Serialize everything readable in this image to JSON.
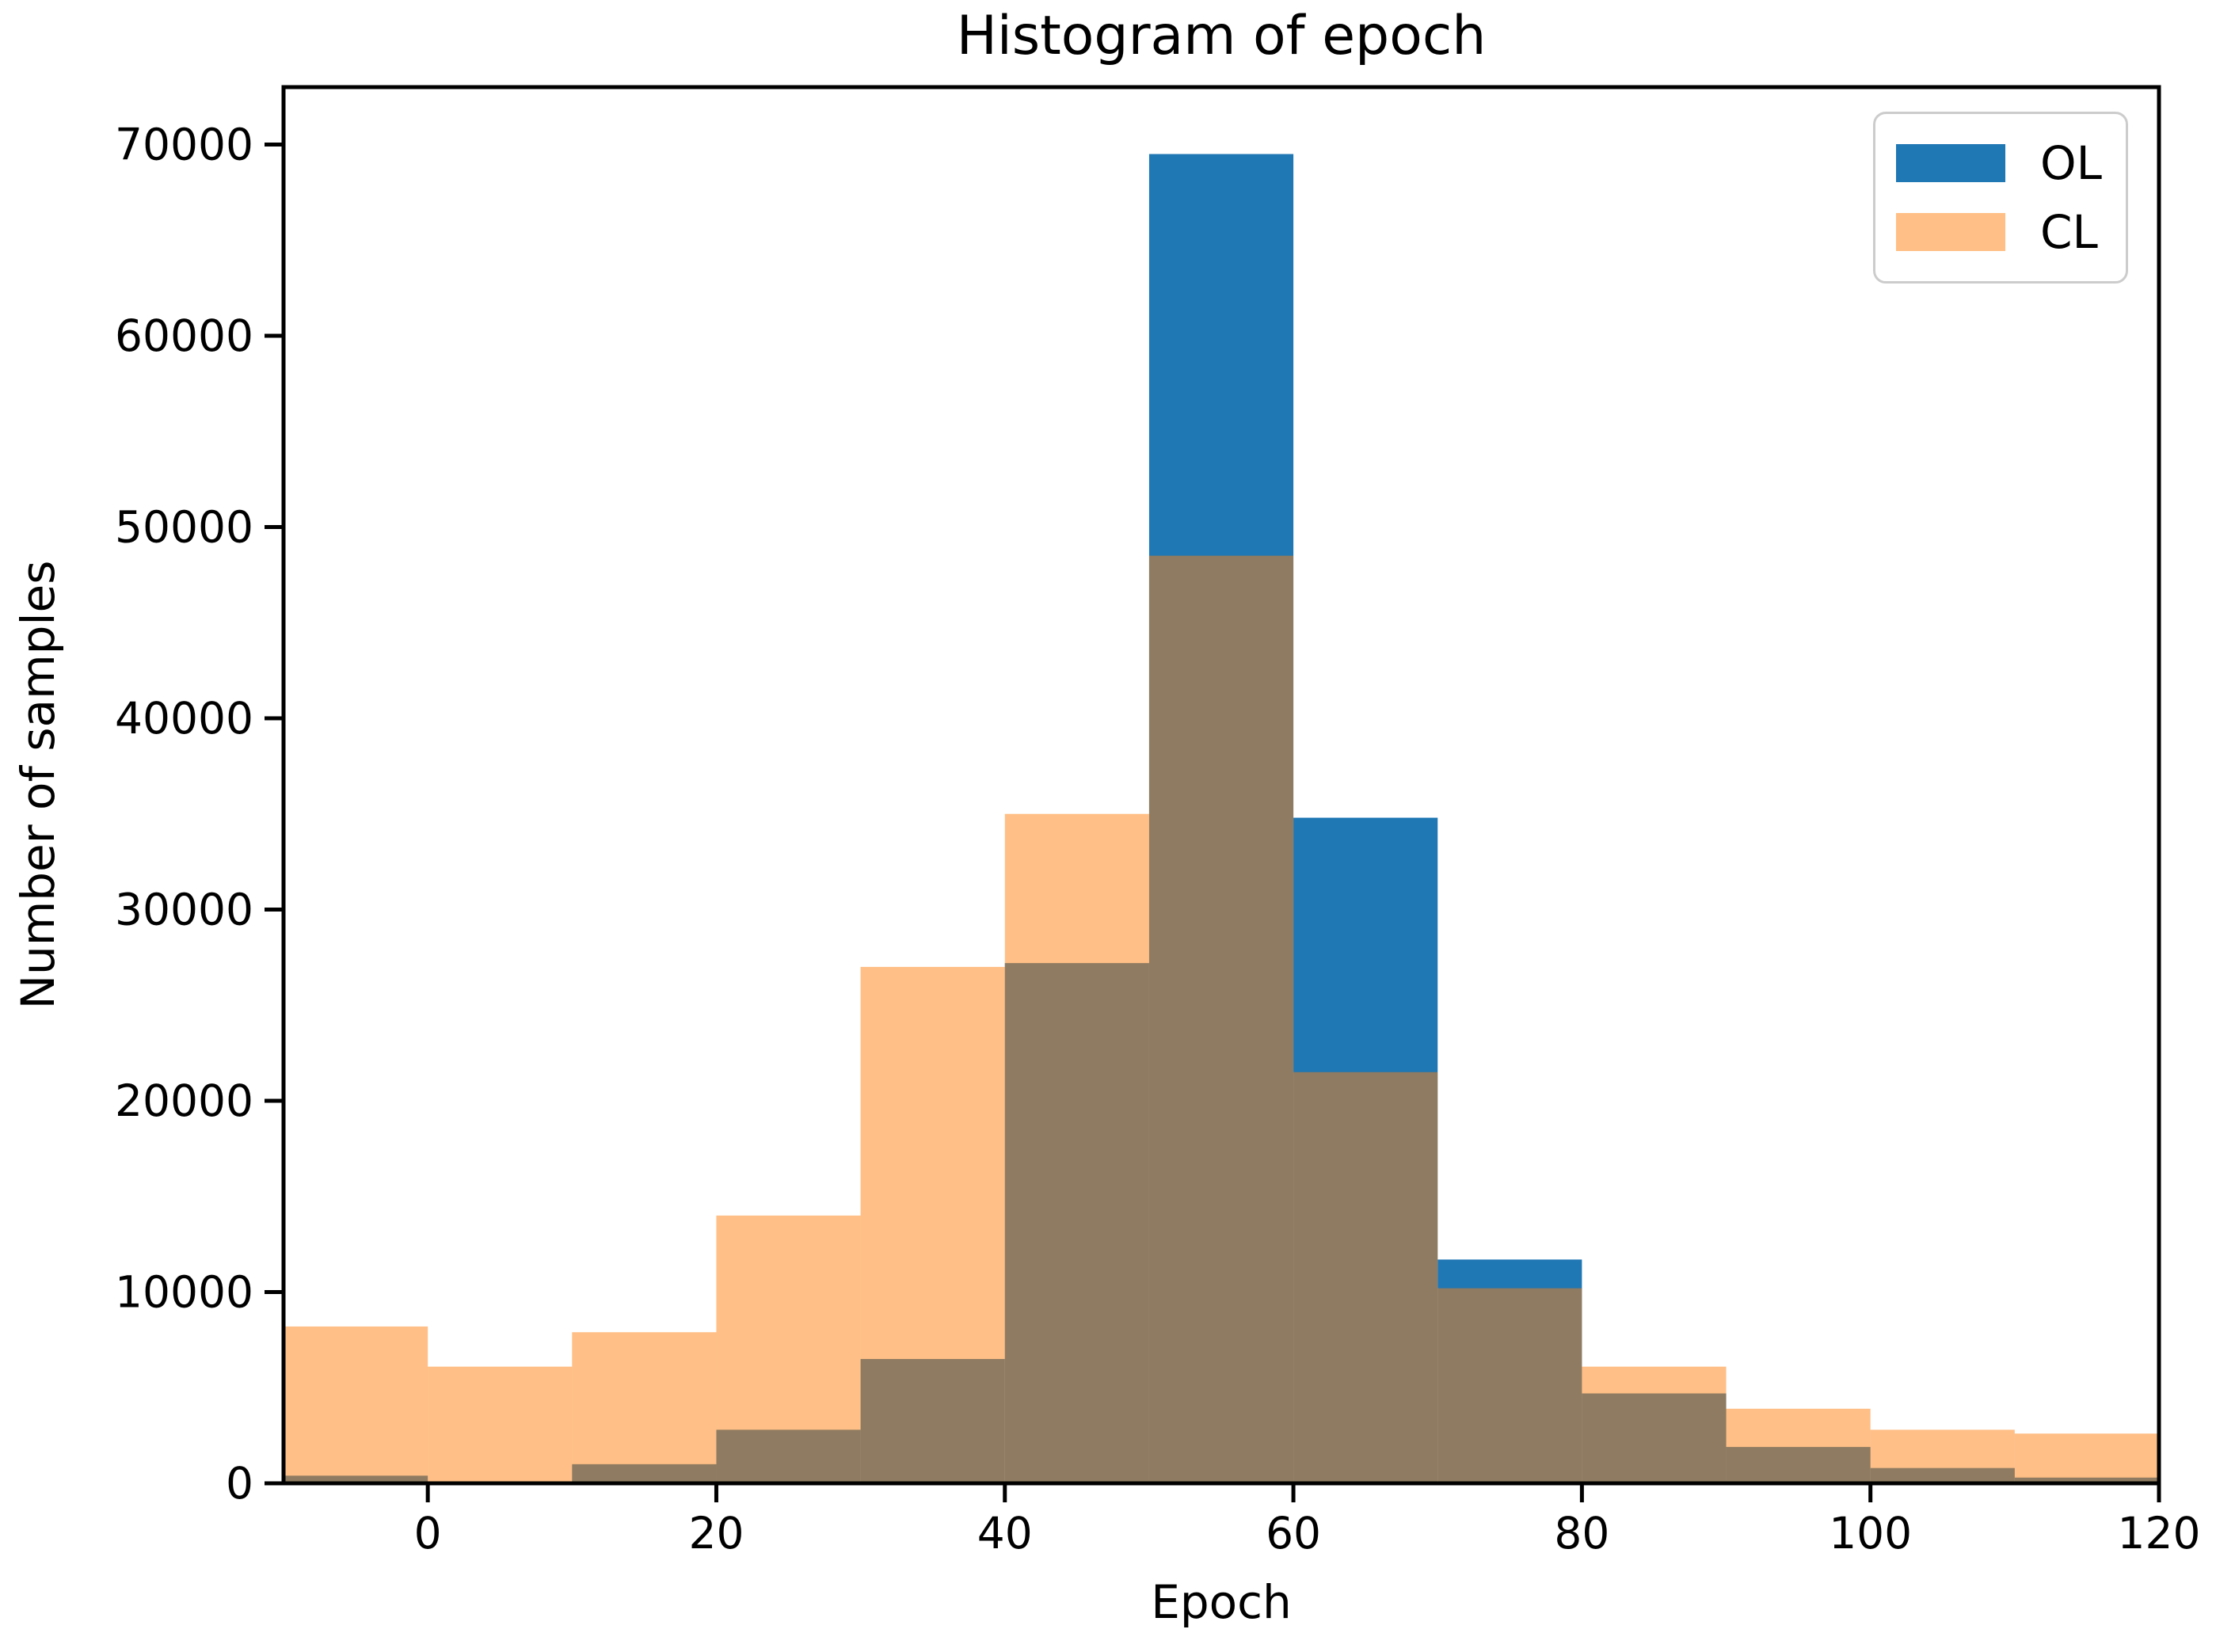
{
  "chart_data": {
    "type": "bar",
    "subtype": "overlapping-histogram",
    "title": "Histogram of epoch",
    "xlabel": "Epoch",
    "ylabel": "Number of samples",
    "bin_edges": [
      -10,
      0,
      10,
      20,
      30,
      40,
      50,
      60,
      70,
      80,
      90,
      100,
      110,
      120
    ],
    "series": [
      {
        "name": "OL",
        "color": "#1f77b4",
        "opacity": 1,
        "values": [
          400,
          0,
          1000,
          2800,
          6500,
          27200,
          69500,
          34800,
          11700,
          4700,
          1900,
          800,
          300
        ]
      },
      {
        "name": "CL",
        "color": "#ff7f0e",
        "opacity": 0.5,
        "values": [
          8200,
          6100,
          7900,
          14000,
          27000,
          35000,
          48500,
          21500,
          10200,
          6100,
          3900,
          2800,
          2600
        ]
      }
    ],
    "overlap_color_rendered": "#8f7b61",
    "cl_alone_color_rendered": "#ffbf86",
    "xlim": [
      -10,
      120
    ],
    "ylim": [
      0,
      73000
    ],
    "xticks": [
      0,
      20,
      40,
      60,
      80,
      100,
      120
    ],
    "yticks": [
      0,
      10000,
      20000,
      30000,
      40000,
      50000,
      60000,
      70000
    ],
    "grid": false,
    "legend": {
      "position": "upper right",
      "entries": [
        "OL",
        "CL"
      ]
    }
  }
}
